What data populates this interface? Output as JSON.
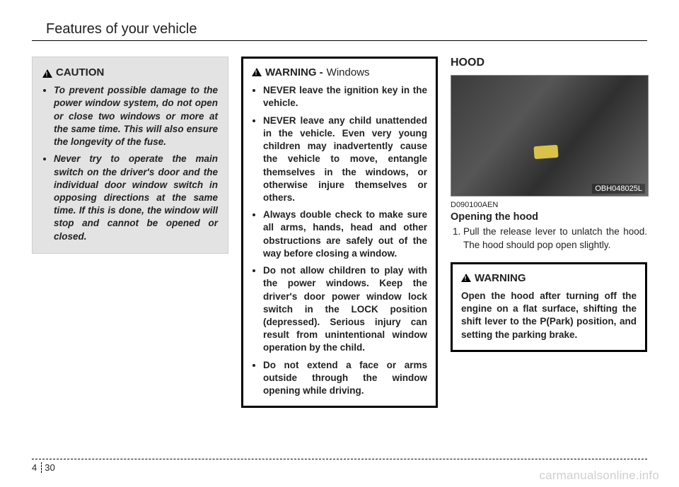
{
  "header": {
    "title": "Features of your vehicle"
  },
  "caution": {
    "label": "CAUTION",
    "items": [
      "To prevent possible damage to the power window system, do not open or close two windows or more at the same time. This will also ensure the longevity of the fuse.",
      "Never try to operate the main switch on the driver's door and the individual door window switch in opposing directions at the same time. If this is done, the window will stop and cannot be opened or closed."
    ]
  },
  "warning_windows": {
    "label": "WARNING -",
    "subtitle": "Windows",
    "items": [
      "NEVER leave the ignition key in the vehicle.",
      "NEVER leave any child unattended in the vehicle.  Even very young children may inadvertently cause the vehicle to move, entangle themselves in the windows, or otherwise injure themselves or others.",
      "Always double check to make sure all arms, hands, head and other obstructions are safely out of the way before closing a window.",
      "Do not allow children to play with the power windows. Keep the driver's door power window lock switch in the LOCK position (depressed). Serious injury can result from unintentional window operation by the child.",
      "Do not extend a face or arms outside through the window opening while driving."
    ]
  },
  "hood": {
    "heading": "HOOD",
    "photo_label": "OBH048025L",
    "figure_code": "D090100AEN",
    "subheading": "Opening the hood",
    "step": "Pull the release lever to unlatch the hood. The hood should pop open slightly."
  },
  "warning_hood": {
    "label": "WARNING",
    "text": "Open the hood after turning off the engine on a flat surface, shifting the shift lever to the P(Park) position, and setting the parking brake."
  },
  "footer": {
    "chapter": "4",
    "page": "30"
  },
  "watermark": "carmanualsonline.info"
}
